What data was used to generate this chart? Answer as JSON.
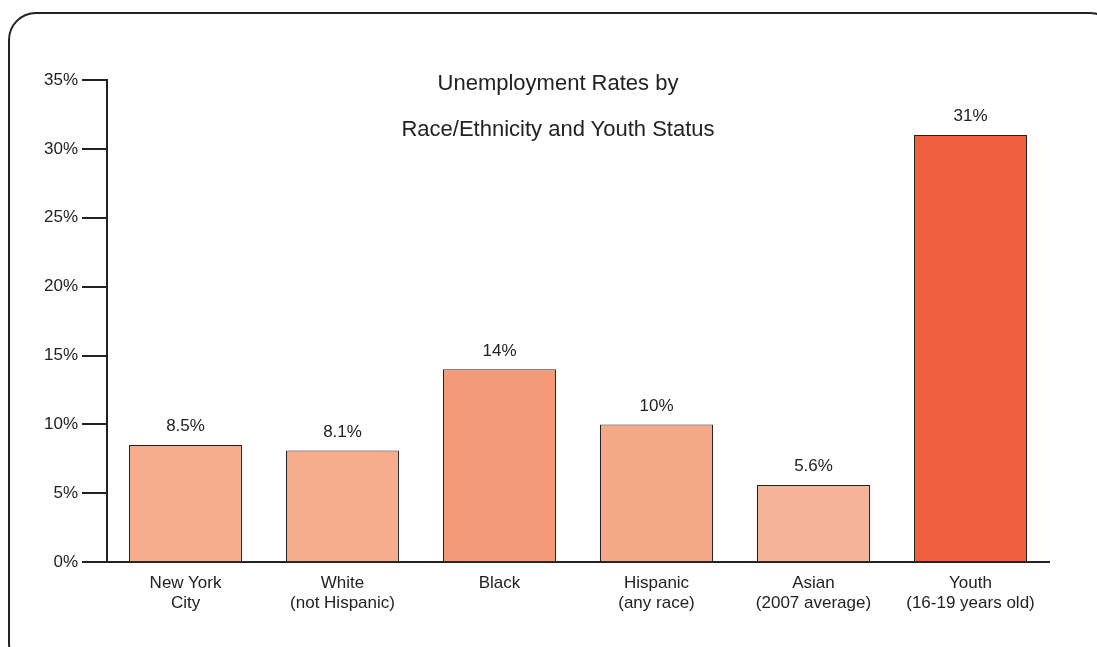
{
  "chart_data": {
    "type": "bar",
    "title": "Unemployment Rates by Race/Ethnicity and Youth Status",
    "categories": [
      "New York City",
      "White (not Hispanic)",
      "Black",
      "Hispanic (any race)",
      "Asian (2007 average)",
      "Youth (16-19 years old)"
    ],
    "values": [
      8.5,
      8.1,
      14,
      10,
      5.6,
      31
    ],
    "colors": [
      "#f5ad8e",
      "#f5ad8e",
      "#f49a78",
      "#f5a888",
      "#f6b598",
      "#f0603f"
    ],
    "value_labels": [
      "8.5%",
      "8.1%",
      "14%",
      "10%",
      "5.6%",
      "31%"
    ],
    "ylim": [
      0,
      35
    ],
    "yticks": [
      {
        "value": 0,
        "label": "0%"
      },
      {
        "value": 5,
        "label": "5%"
      },
      {
        "value": 10,
        "label": "10%"
      },
      {
        "value": 15,
        "label": "15%"
      },
      {
        "value": 20,
        "label": "20%"
      },
      {
        "value": 25,
        "label": "25%"
      },
      {
        "value": 30,
        "label": "30%"
      },
      {
        "value": 35,
        "label": "35%"
      }
    ],
    "grid": false,
    "legend": false
  }
}
